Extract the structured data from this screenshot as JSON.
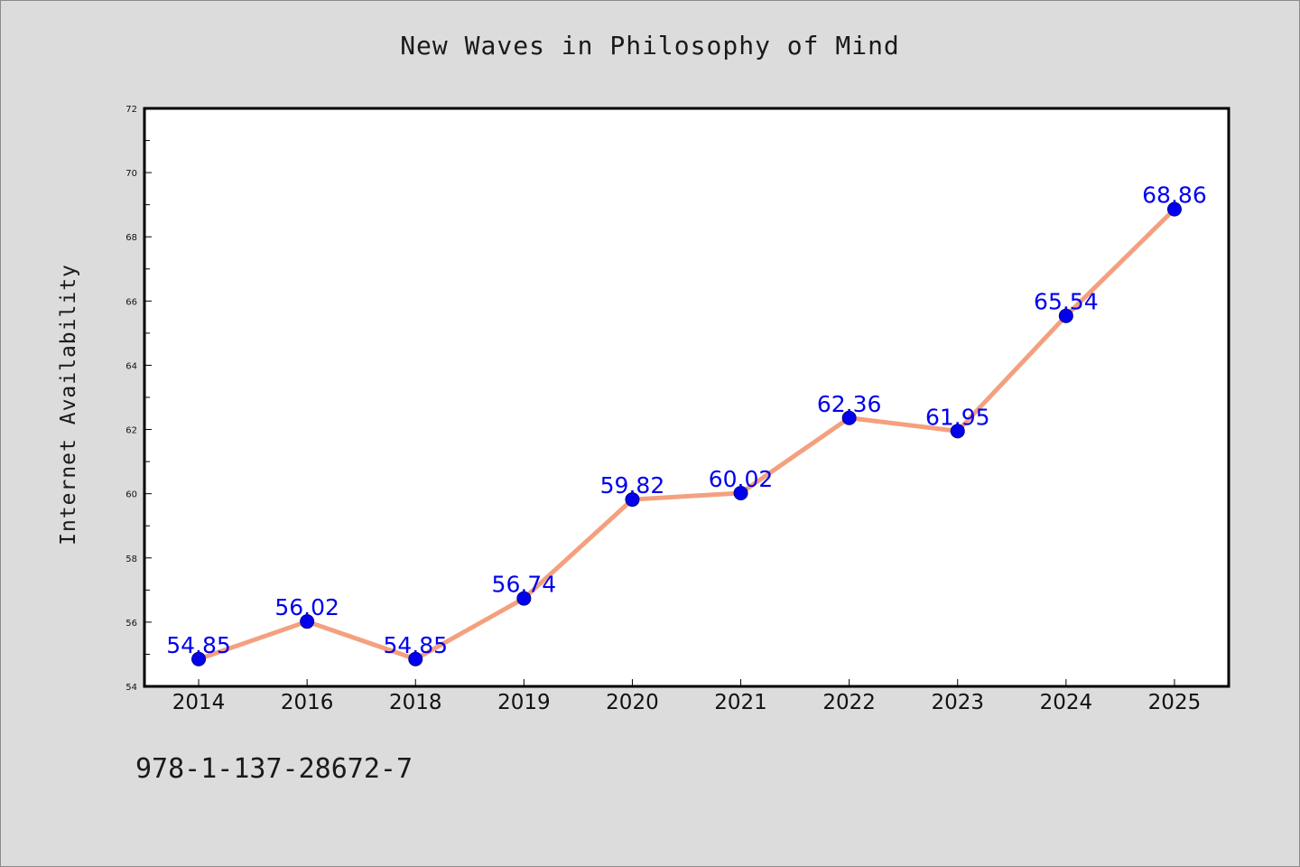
{
  "chart_data": {
    "type": "line",
    "title": "New Waves in Philosophy of Mind",
    "xlabel": "",
    "ylabel": "Internet Availability",
    "categories": [
      "2014",
      "2016",
      "2018",
      "2019",
      "2020",
      "2021",
      "2022",
      "2023",
      "2024",
      "2025"
    ],
    "values": [
      54.85,
      56.02,
      54.85,
      56.74,
      59.82,
      60.02,
      62.36,
      61.95,
      65.54,
      68.86
    ],
    "data_labels": [
      "54.85",
      "56.02",
      "54.85",
      "56.74",
      "59.82",
      "60.02",
      "62.36",
      "61.95",
      "65.54",
      "68.86"
    ],
    "ylim": [
      54,
      72
    ],
    "yticks": [
      54,
      56,
      58,
      60,
      62,
      64,
      66,
      68,
      70,
      72
    ],
    "grid": false,
    "legend": "none",
    "colors": {
      "line": "#f4a07e",
      "marker": "#0000ee",
      "data_label": "#0000ee",
      "plot_background": "#ffffff",
      "figure_background": "#dcdcdc"
    }
  },
  "footer": {
    "code": "978-1-137-28672-7"
  }
}
